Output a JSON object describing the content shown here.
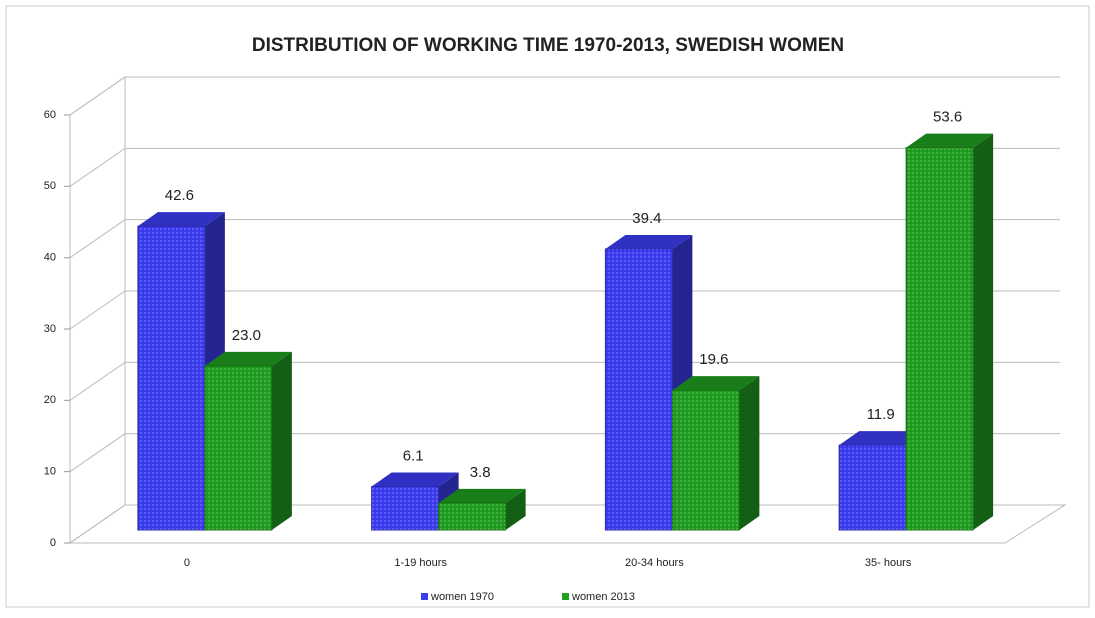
{
  "chart_data": {
    "type": "bar3d",
    "title": "DISTRIBUTION OF WORKING TIME 1970-2013, SWEDISH WOMEN",
    "categories": [
      "0",
      "1-19 hours",
      "20-34 hours",
      "35- hours"
    ],
    "series": [
      {
        "name": "women 1970",
        "color": "#3c3cf2",
        "values": [
          42.6,
          6.1,
          39.4,
          11.9
        ],
        "value_labels": [
          "42.6",
          "6.1",
          "39.4",
          "11.9"
        ]
      },
      {
        "name": "women 2013",
        "color": "#1f9e1f",
        "values": [
          23.0,
          3.8,
          19.6,
          53.6
        ],
        "value_labels": [
          "23.0",
          "3.8",
          "19.6",
          "53.6"
        ]
      }
    ],
    "ylim": [
      0,
      60
    ],
    "yticks": [
      0,
      10,
      20,
      30,
      40,
      50,
      60
    ],
    "grid": true,
    "legend": "bottom"
  }
}
